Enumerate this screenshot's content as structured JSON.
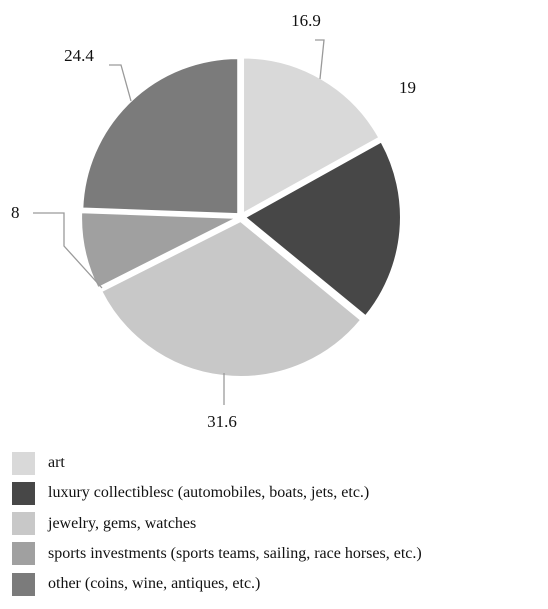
{
  "chart_data": {
    "type": "pie",
    "title": "",
    "start_angle_deg": 0,
    "direction": "clockwise",
    "legend_position": "bottom-left",
    "slices": [
      {
        "label": "art",
        "value": 16.9,
        "color": "#d9d9d9"
      },
      {
        "label": "luxury collectiblesc (automobiles, boats, jets, etc.)",
        "value": 19,
        "color": "#474747"
      },
      {
        "label": "jewelry, gems, watches",
        "value": 31.6,
        "color": "#c8c8c8"
      },
      {
        "label": "sports investments (sports teams, sailing, race horses, etc.)",
        "value": 8,
        "color": "#a0a0a0"
      },
      {
        "label": "other (coins, wine, antiques, etc.)",
        "value": 24.4,
        "color": "#7b7b7b"
      }
    ],
    "value_labels": [
      "16.9",
      "19",
      "31.6",
      "8",
      "24.4"
    ]
  }
}
